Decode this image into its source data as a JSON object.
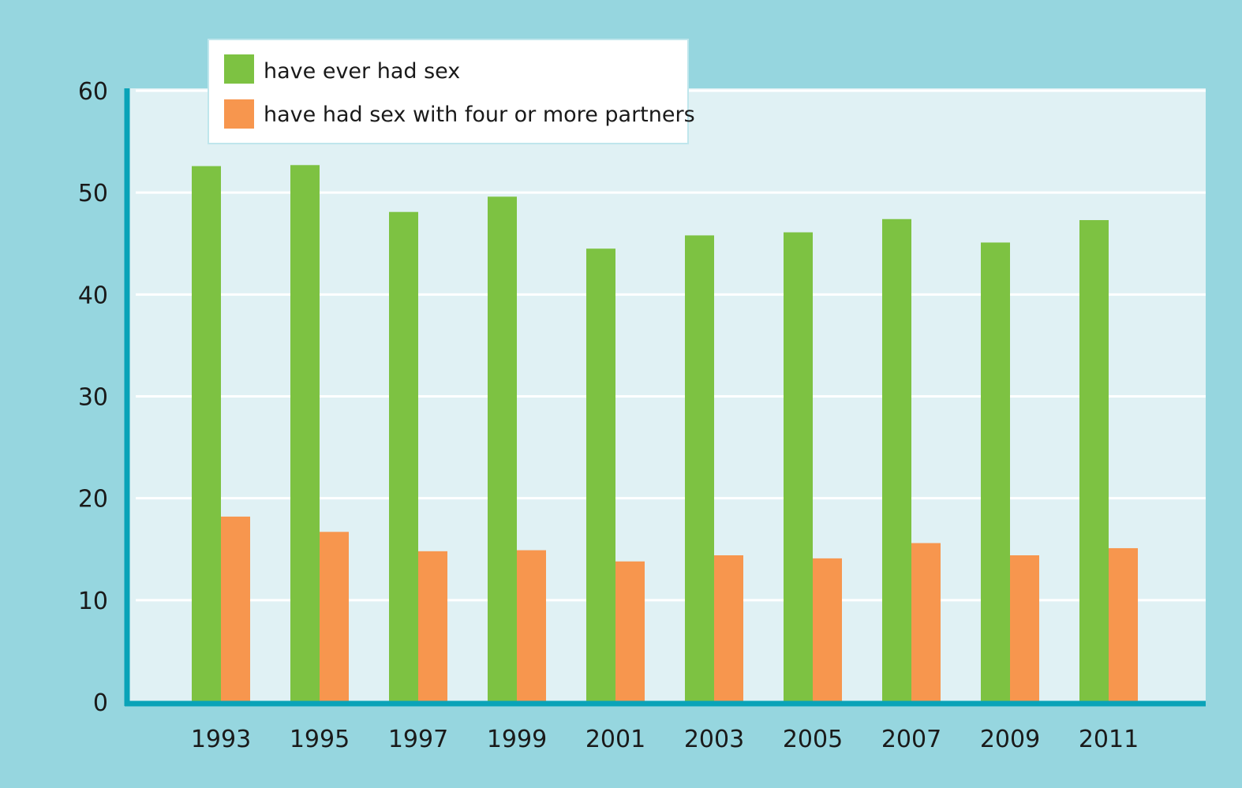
{
  "chart_data": {
    "type": "bar",
    "categories": [
      "1993",
      "1995",
      "1997",
      "1999",
      "2001",
      "2003",
      "2005",
      "2007",
      "2009",
      "2011"
    ],
    "series": [
      {
        "name": "have ever had sex",
        "color": "#7dc242",
        "values": [
          52.6,
          52.7,
          48.1,
          49.6,
          44.5,
          45.8,
          46.1,
          47.4,
          45.1,
          47.3
        ]
      },
      {
        "name": "have had sex with four or more partners",
        "color": "#f7964e",
        "values": [
          18.2,
          16.7,
          14.8,
          14.9,
          13.8,
          14.4,
          14.1,
          15.6,
          14.4,
          15.1
        ]
      }
    ],
    "ylim": [
      0,
      60
    ],
    "yticks": [
      "0",
      "10",
      "20",
      "30",
      "40",
      "50",
      "60"
    ],
    "grid": true,
    "legend": "top-left",
    "colors": {
      "background": "#96d6df",
      "plot_area": "#e0f1f4",
      "axis": "#0aa3b8",
      "gridline": "#ffffff"
    }
  }
}
